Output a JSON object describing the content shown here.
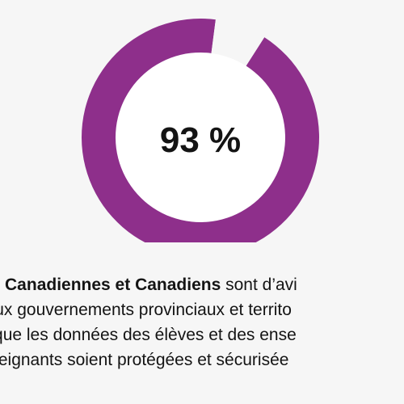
{
  "chart_data": {
    "type": "pie",
    "values": [
      93,
      7
    ],
    "center_label": "93 %",
    "colors": {
      "filled": "#8e2f8b",
      "remainder": "#f6f6f6",
      "inner": "#ffffff",
      "text": "#141414",
      "background": "#f6f6f6"
    }
  },
  "caption": {
    "line1_bold": "des Canadiennes et Canadiens",
    "line1_rest": " sont d’avi",
    "line2": "e aux gouvernements provinciaux et territo",
    "line3": "ce que les données des élèves et des ense",
    "line4": "enseignants soient protégées et sécurisée"
  }
}
